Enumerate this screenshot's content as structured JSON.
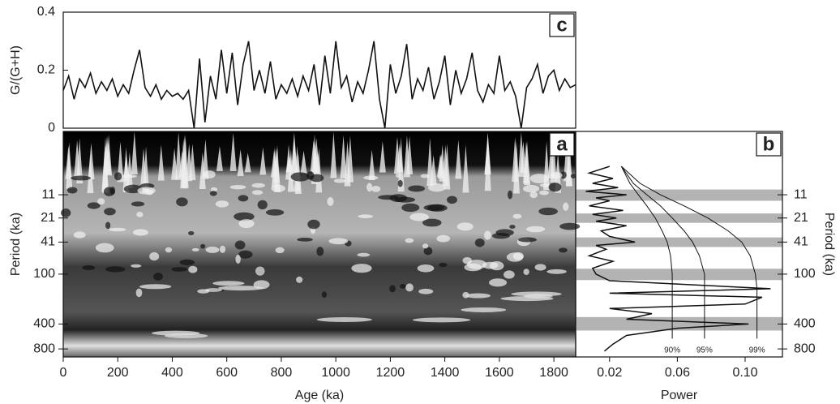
{
  "chart_data": [
    {
      "type": "line",
      "label": "c",
      "ylabel": "G/(G+H)",
      "color": "#111",
      "x": [
        0,
        20,
        40,
        60,
        80,
        100,
        120,
        140,
        160,
        180,
        200,
        220,
        240,
        260,
        280,
        300,
        320,
        340,
        360,
        380,
        400,
        420,
        440,
        460,
        480,
        500,
        520,
        540,
        560,
        580,
        600,
        620,
        640,
        660,
        680,
        700,
        720,
        740,
        760,
        780,
        800,
        820,
        840,
        860,
        880,
        900,
        920,
        940,
        960,
        980,
        1000,
        1020,
        1040,
        1060,
        1080,
        1100,
        1120,
        1140,
        1160,
        1180,
        1200,
        1220,
        1240,
        1260,
        1280,
        1300,
        1320,
        1340,
        1360,
        1380,
        1400,
        1420,
        1440,
        1460,
        1480,
        1500,
        1520,
        1540,
        1560,
        1580,
        1600,
        1620,
        1640,
        1660,
        1680,
        1700,
        1720,
        1740,
        1760,
        1780,
        1800,
        1820,
        1840,
        1860,
        1880
      ],
      "values": [
        0.13,
        0.18,
        0.1,
        0.17,
        0.14,
        0.19,
        0.12,
        0.16,
        0.13,
        0.17,
        0.11,
        0.15,
        0.12,
        0.2,
        0.27,
        0.14,
        0.11,
        0.15,
        0.1,
        0.13,
        0.11,
        0.12,
        0.1,
        0.13,
        0.0,
        0.24,
        0.02,
        0.18,
        0.1,
        0.27,
        0.12,
        0.26,
        0.08,
        0.22,
        0.3,
        0.13,
        0.2,
        0.12,
        0.23,
        0.1,
        0.15,
        0.12,
        0.17,
        0.11,
        0.18,
        0.13,
        0.22,
        0.08,
        0.25,
        0.12,
        0.3,
        0.14,
        0.18,
        0.09,
        0.16,
        0.12,
        0.2,
        0.3,
        0.1,
        0.0,
        0.22,
        0.12,
        0.18,
        0.29,
        0.1,
        0.17,
        0.13,
        0.21,
        0.1,
        0.16,
        0.25,
        0.08,
        0.2,
        0.12,
        0.17,
        0.26,
        0.13,
        0.09,
        0.15,
        0.12,
        0.25,
        0.13,
        0.16,
        0.11,
        0.0,
        0.14,
        0.17,
        0.22,
        0.12,
        0.18,
        0.2,
        0.13,
        0.17,
        0.14,
        0.15
      ],
      "xlim": [
        0,
        1880
      ],
      "ylim": [
        0,
        0.4
      ],
      "yticks": [
        0,
        0.2,
        0.4
      ]
    },
    {
      "type": "wavelet",
      "label": "a",
      "xlabel": "Age (ka)",
      "ylabel": "Period (ka)",
      "xlim": [
        0,
        1880
      ],
      "xticks": [
        0,
        200,
        400,
        600,
        800,
        1000,
        1200,
        1400,
        1600,
        1800
      ],
      "ylim": [
        1.89,
        1000
      ],
      "log_y": true,
      "y_reversed": true,
      "yticks": [
        11,
        21,
        41,
        100,
        400,
        800
      ]
    },
    {
      "type": "spectrum",
      "label": "b",
      "xlabel": "Power",
      "ylabel": "Period (ka)",
      "color": "#111",
      "band_color": "#b3b3b3",
      "xlim": [
        0,
        0.122
      ],
      "xticks": [
        0.02,
        0.06,
        {
          "value": 0.1,
          "label": "0.10"
        }
      ],
      "ylim": [
        1.89,
        1000
      ],
      "log_y": true,
      "y_reversed": true,
      "yticks": [
        11,
        21,
        41,
        100,
        400,
        800
      ],
      "bands": [
        [
          9.5,
          13
        ],
        [
          18.5,
          24
        ],
        [
          36,
          47
        ],
        [
          86,
          118
        ],
        [
          330,
          480
        ]
      ],
      "spectrum": {
        "periods": [
          5,
          6,
          7,
          8,
          9,
          10,
          11,
          12,
          13,
          15,
          17,
          19,
          21,
          23,
          26,
          30,
          35,
          41,
          45,
          50,
          60,
          70,
          85,
          100,
          120,
          150,
          170,
          190,
          230,
          260,
          300,
          350,
          400,
          450,
          550,
          700,
          850
        ],
        "values": [
          0.02,
          0.008,
          0.022,
          0.01,
          0.025,
          0.006,
          0.03,
          0.012,
          0.02,
          0.008,
          0.028,
          0.01,
          0.024,
          0.012,
          0.03,
          0.015,
          0.02,
          0.035,
          0.012,
          0.018,
          0.008,
          0.022,
          0.01,
          0.012,
          0.02,
          0.115,
          0.02,
          0.11,
          0.1,
          0.02,
          0.045,
          0.03,
          0.102,
          0.06,
          0.03,
          0.022,
          0.017
        ]
      },
      "significance": [
        {
          "name": "90%",
          "periods": [
            5,
            8,
            11,
            15,
            21,
            30,
            41,
            60,
            100,
            150,
            250,
            400,
            600
          ],
          "values": [
            0.027,
            0.032,
            0.037,
            0.042,
            0.047,
            0.051,
            0.054,
            0.056,
            0.057,
            0.057,
            0.057,
            0.057,
            0.057
          ]
        },
        {
          "name": "95%",
          "periods": [
            5,
            8,
            11,
            15,
            21,
            30,
            41,
            60,
            100,
            150,
            250,
            400,
            600
          ],
          "values": [
            0.027,
            0.034,
            0.042,
            0.05,
            0.057,
            0.064,
            0.069,
            0.073,
            0.076,
            0.076,
            0.076,
            0.076,
            0.076
          ]
        },
        {
          "name": "99%",
          "periods": [
            5,
            8,
            11,
            15,
            21,
            30,
            41,
            60,
            100,
            150,
            250,
            400,
            600
          ],
          "values": [
            0.027,
            0.038,
            0.05,
            0.064,
            0.078,
            0.09,
            0.098,
            0.103,
            0.106,
            0.107,
            0.107,
            0.107,
            0.107
          ]
        }
      ]
    }
  ]
}
